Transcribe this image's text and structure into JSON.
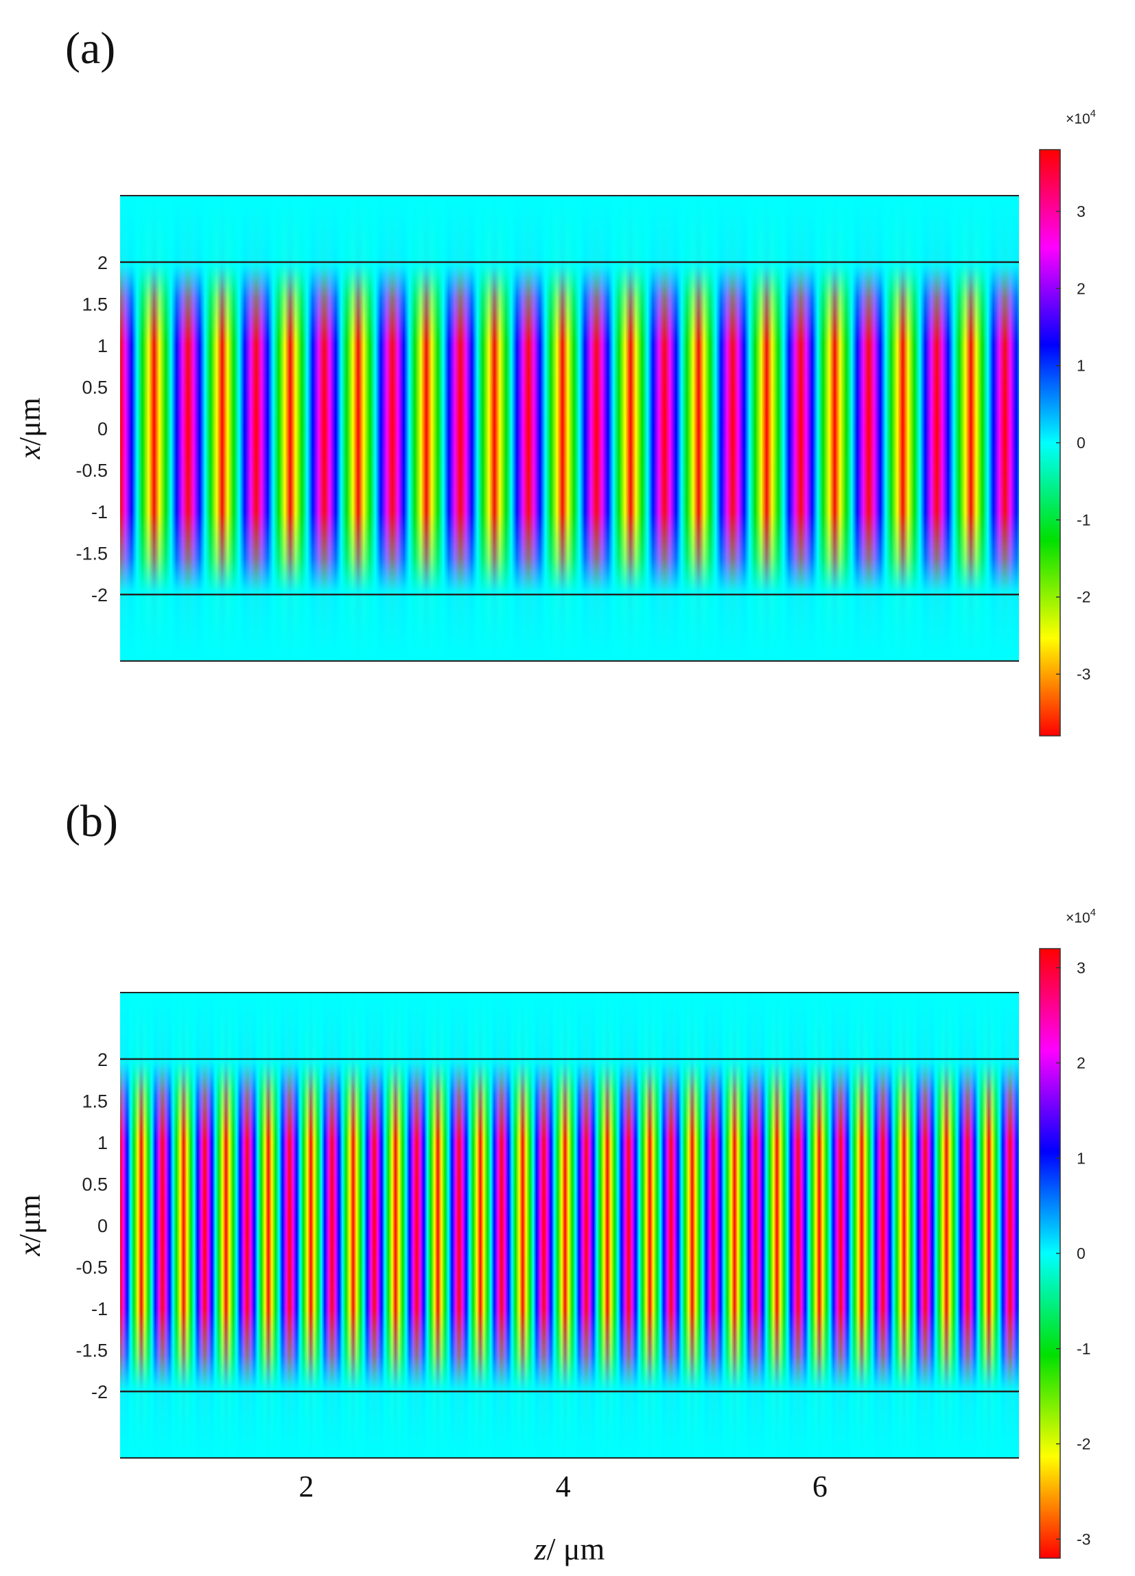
{
  "chart_data": [
    {
      "type": "heatmap",
      "panel_label": "(a)",
      "ylabel": "x/μm",
      "ylabel_var": "x",
      "ylabel_unit": "/μm",
      "xlabel": "",
      "y_ticks": [
        "2",
        "1.5",
        "1",
        "0.5",
        "0",
        "-0.5",
        "-1",
        "-1.5",
        "-2"
      ],
      "y_tick_values": [
        2,
        1.5,
        1,
        0.5,
        0,
        -0.5,
        -1,
        -1.5,
        -2
      ],
      "ylim": [
        -2.8,
        2.8
      ],
      "xlim": [
        0.55,
        7.55
      ],
      "core_boundaries": [
        -2,
        2
      ],
      "field_period_um": 0.53,
      "field_peak_values_x1e4": [
        -3.7,
        3.7
      ],
      "colorbar": {
        "multiplier": "×10",
        "exponent": "4",
        "ticks": [
          "3",
          "2",
          "1",
          "0",
          "-1",
          "-2",
          "-3"
        ],
        "tick_values": [
          3,
          2,
          1,
          0,
          -1,
          -2,
          -3
        ],
        "range": [
          -3.8,
          3.8
        ],
        "colors": [
          "#ff0000",
          "#ffff00",
          "#00e000",
          "#00ffff",
          "#0000ff",
          "#ff00ff",
          "#ff0000"
        ]
      }
    },
    {
      "type": "heatmap",
      "panel_label": "(b)",
      "ylabel": "x/μm",
      "ylabel_var": "x",
      "ylabel_unit": "/μm",
      "xlabel": "z/ μm",
      "xlabel_var": "z",
      "xlabel_unit": "/ μm",
      "x_ticks": [
        "2",
        "4",
        "6"
      ],
      "x_tick_values": [
        2,
        4,
        6
      ],
      "y_ticks": [
        "2",
        "1.5",
        "1",
        "0.5",
        "0",
        "-0.5",
        "-1",
        "-1.5",
        "-2"
      ],
      "y_tick_values": [
        2,
        1.5,
        1,
        0.5,
        0,
        -0.5,
        -1,
        -1.5,
        -2
      ],
      "ylim": [
        -2.8,
        2.8
      ],
      "xlim": [
        0.55,
        7.55
      ],
      "core_boundaries": [
        -2,
        2
      ],
      "field_period_um": 0.33,
      "field_peak_values_x1e4": [
        -3.2,
        3.2
      ],
      "colorbar": {
        "multiplier": "×10",
        "exponent": "4",
        "ticks": [
          "3",
          "2",
          "1",
          "0",
          "-1",
          "-2",
          "-3"
        ],
        "tick_values": [
          3,
          2,
          1,
          0,
          -1,
          -2,
          -3
        ],
        "range": [
          -3.2,
          3.2
        ],
        "colors": [
          "#ff0000",
          "#ffff00",
          "#00e000",
          "#00ffff",
          "#0000ff",
          "#ff00ff",
          "#ff0000"
        ]
      }
    }
  ]
}
